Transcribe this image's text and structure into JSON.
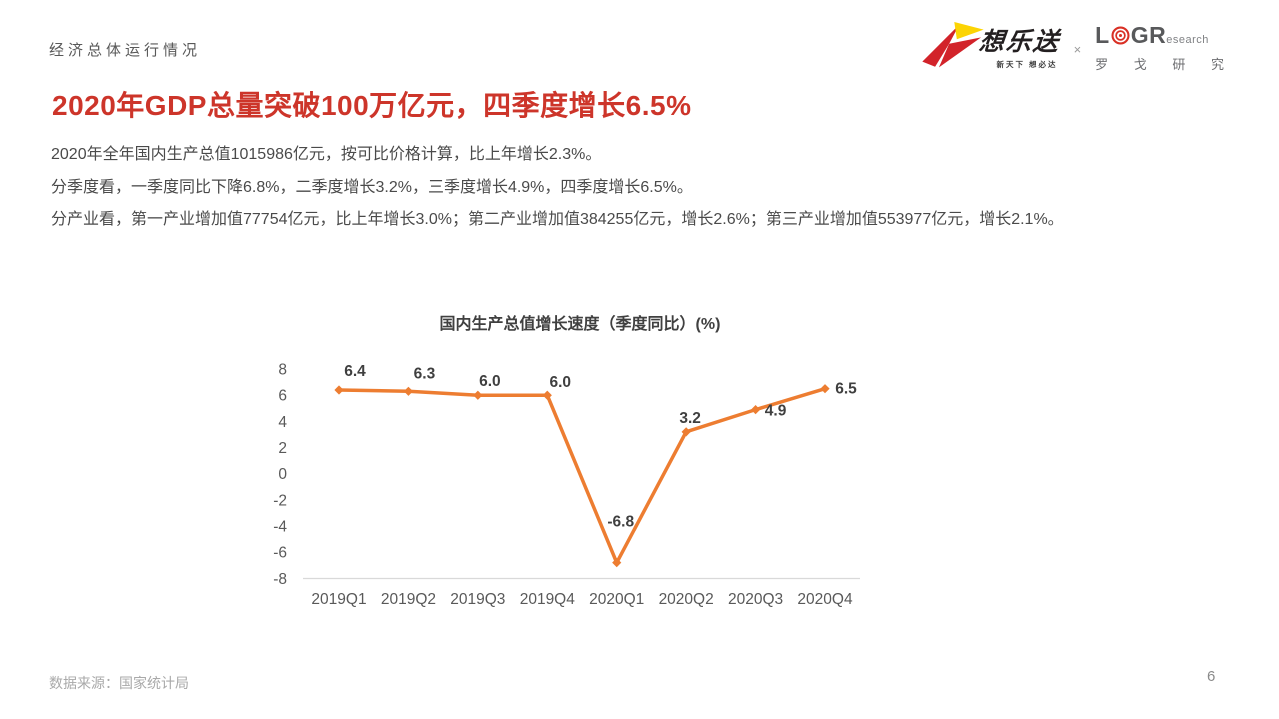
{
  "header": {
    "eyebrow": "经济总体运行情况",
    "logo_xls": {
      "name": "想乐送",
      "slogan": "新天下 想必达",
      "arrow_red": "#d2232a",
      "arrow_yellow": "#fcd404"
    },
    "separator": "×",
    "logo_logr": {
      "l": "L",
      "gr": "GR",
      "small": "esearch",
      "cn": "罗 戈 研 究",
      "target_red": "#d93025"
    }
  },
  "title": "2020年GDP总量突破100万亿元，四季度增长6.5%",
  "body": {
    "line1": "2020年全年国内生产总值1015986亿元，按可比价格计算，比上年增长2.3%。",
    "line2": "分季度看，一季度同比下降6.8%，二季度增长3.2%，三季度增长4.9%，四季度增长6.5%。",
    "line3": "分产业看，第一产业增加值77754亿元，比上年增长3.0%；第二产业增加值384255亿元，增长2.6%；第三产业增加值553977亿元，增长2.1%。"
  },
  "chart_data": {
    "type": "line",
    "title": "国内生产总值增长速度（季度同比）(%)",
    "categories": [
      "2019Q1",
      "2019Q2",
      "2019Q3",
      "2019Q4",
      "2020Q1",
      "2020Q2",
      "2020Q3",
      "2020Q4"
    ],
    "values": [
      6.4,
      6.3,
      6.0,
      6.0,
      -6.8,
      3.2,
      4.9,
      6.5
    ],
    "value_labels": [
      "6.4",
      "6.3",
      "6.0",
      "6.0",
      "-6.8",
      "3.2",
      "4.9",
      "6.5"
    ],
    "ylim": [
      -8,
      8
    ],
    "ytick_step": 2,
    "grid": false,
    "legend": "none",
    "line_color": "#ED7D31",
    "marker": "diamond",
    "data_label_color": "#3f3f3f",
    "tick_color": "#595959",
    "axis_color": "#d9d9d9"
  },
  "footer": {
    "source": "数据来源：国家统计局",
    "page": "6"
  },
  "colors": {
    "title_red": "#cd352a",
    "body_gray": "#4a4a4a",
    "footer_gray": "#a9a9a9"
  }
}
